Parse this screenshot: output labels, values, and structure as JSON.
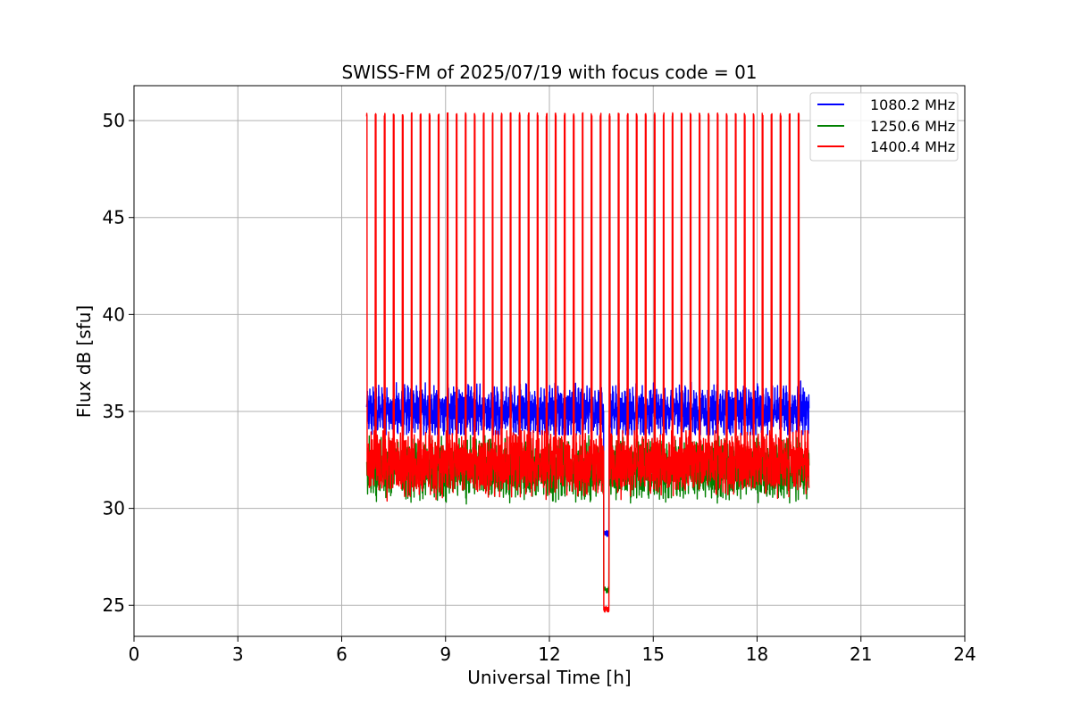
{
  "chart_data": {
    "type": "line",
    "title": "SWISS-FM of 2025/07/19 with focus code = 01",
    "xlabel": "Universal Time [h]",
    "ylabel": "Flux dB [sfu]",
    "xlim": [
      0,
      24
    ],
    "ylim": [
      23.4,
      51.8
    ],
    "xticks": [
      0,
      3,
      6,
      9,
      12,
      15,
      18,
      21,
      24
    ],
    "xtick_labels": [
      "0",
      "3",
      "6",
      "9",
      "12",
      "15",
      "18",
      "21",
      "24"
    ],
    "yticks": [
      25,
      30,
      35,
      40,
      45,
      50
    ],
    "ytick_labels": [
      "25",
      "30",
      "35",
      "40",
      "45",
      "50"
    ],
    "grid": true,
    "legend_position": "top-right",
    "data_start_h": 6.72,
    "data_end_h": 19.5,
    "gap_start_h": 13.57,
    "gap_end_h": 13.72,
    "calibration_spikes_h": [
      6.72,
      6.98,
      7.24,
      7.5,
      7.76,
      8.02,
      8.28,
      8.54,
      8.8,
      9.06,
      9.32,
      9.58,
      9.84,
      10.1,
      10.36,
      10.62,
      10.88,
      11.14,
      11.4,
      11.66,
      11.92,
      12.18,
      12.44,
      12.7,
      12.96,
      13.22,
      13.48,
      13.74,
      14.0,
      14.26,
      14.52,
      14.78,
      15.04,
      15.3,
      15.56,
      15.82,
      16.08,
      16.34,
      16.6,
      16.86,
      17.12,
      17.38,
      17.64,
      17.9,
      18.16,
      18.42,
      18.68,
      18.94,
      19.2
    ],
    "series": [
      {
        "name": "1080.2 MHz",
        "color": "#0000ff",
        "baseline": 35.0,
        "noise_range": [
          33.8,
          37.0
        ],
        "gap_level": 28.7
      },
      {
        "name": "1250.6 MHz",
        "color": "#008000",
        "baseline": 32.0,
        "noise_range": [
          29.8,
          34.0
        ],
        "gap_level": 25.8
      },
      {
        "name": "1400.4 MHz",
        "color": "#ff0000",
        "baseline": 32.3,
        "noise_range": [
          29.3,
          34.0
        ],
        "spike_peak": 50.3,
        "gap_level": 24.8
      }
    ]
  }
}
